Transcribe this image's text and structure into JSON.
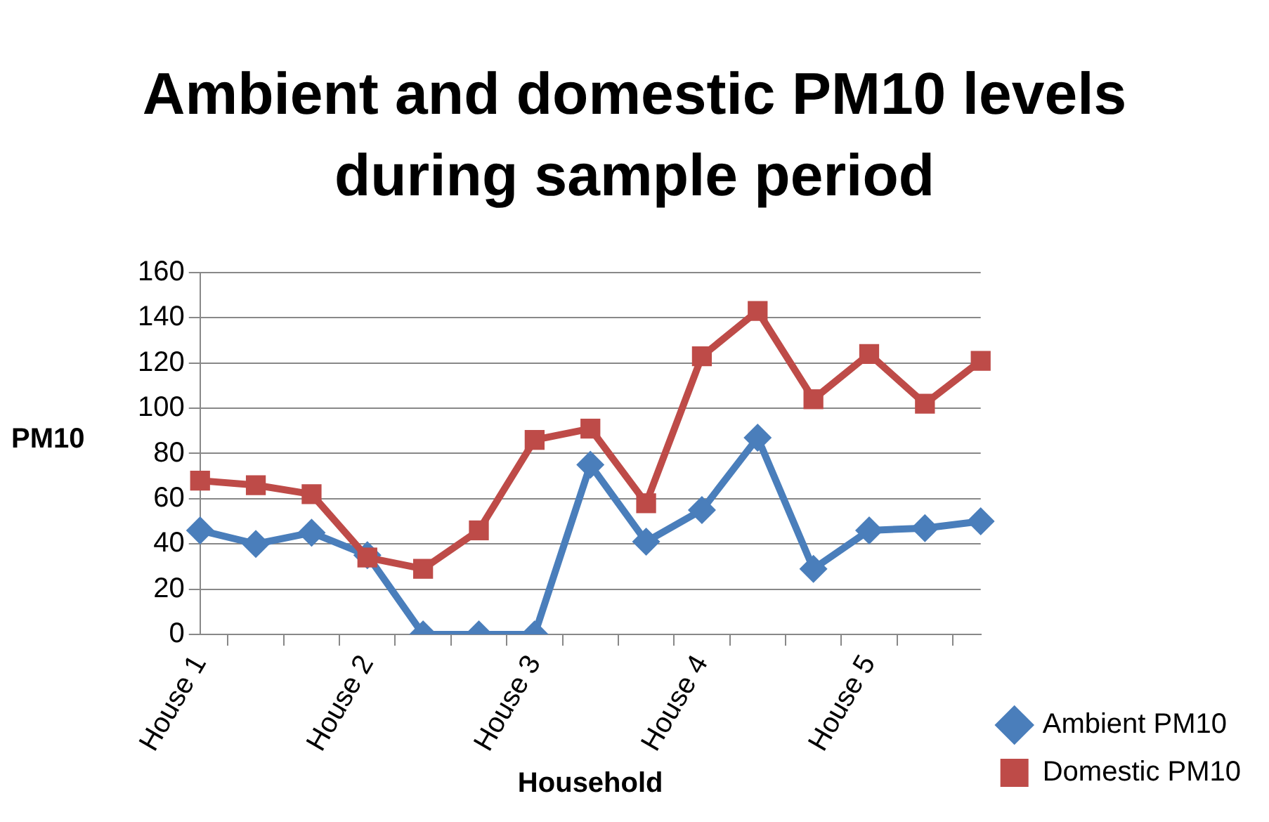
{
  "chart_data": {
    "type": "line",
    "title": "Ambient and domestic PM10 levels during sample period",
    "xlabel": "Household",
    "ylabel": "PM10",
    "categories": [
      "House 1",
      null,
      null,
      "House 2",
      null,
      null,
      "House 3",
      null,
      null,
      "House 4",
      null,
      null,
      "House 5",
      null,
      null
    ],
    "series": [
      {
        "name": "Ambient PM10",
        "color": "#4a7ebb",
        "marker": "diamond",
        "values": [
          46,
          40,
          45,
          35,
          0,
          0,
          0,
          75,
          41,
          55,
          87,
          29,
          46,
          47,
          50
        ]
      },
      {
        "name": "Domestic PM10",
        "color": "#be4b48",
        "marker": "square",
        "values": [
          68,
          66,
          62,
          34,
          29,
          46,
          86,
          91,
          58,
          123,
          143,
          104,
          124,
          102,
          121
        ]
      }
    ],
    "ylim": [
      0,
      160
    ],
    "yticks": [
      0,
      20,
      40,
      60,
      80,
      100,
      120,
      140,
      160
    ],
    "grid": "y",
    "legend": "right",
    "line_style": "solid"
  }
}
